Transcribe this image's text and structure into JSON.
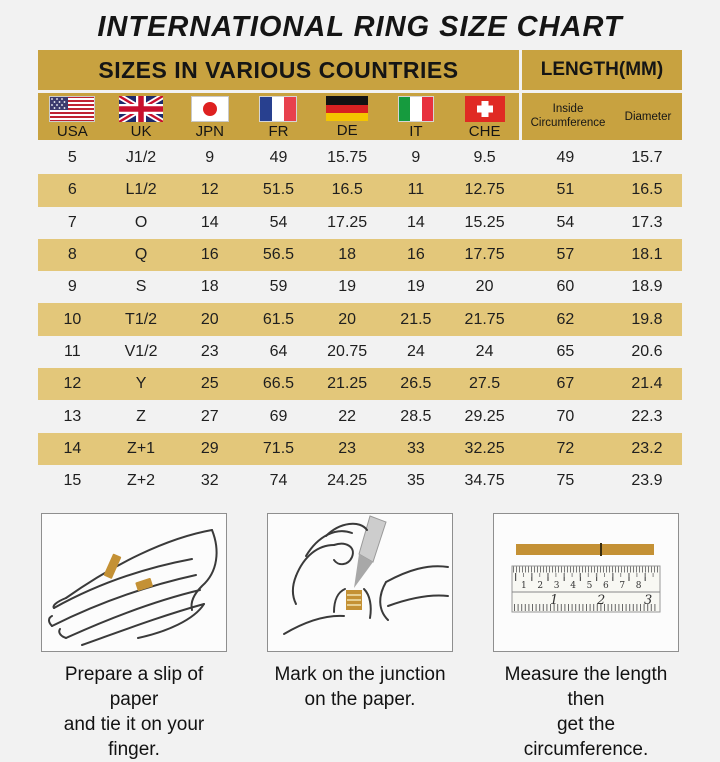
{
  "title": "INTERNATIONAL RING SIZE CHART",
  "table": {
    "group_headers": {
      "left": "SIZES IN VARIOUS COUNTRIES",
      "right": "LENGTH(MM)"
    },
    "columns": [
      {
        "code": "USA",
        "flag": "usa-flag"
      },
      {
        "code": "UK",
        "flag": "uk-flag"
      },
      {
        "code": "JPN",
        "flag": "japan-flag"
      },
      {
        "code": "FR",
        "flag": "france-flag"
      },
      {
        "code": "DE",
        "flag": "germany-flag"
      },
      {
        "code": "IT",
        "flag": "italy-flag"
      },
      {
        "code": "CHE",
        "flag": "switzerland-flag"
      }
    ],
    "length_columns": {
      "inside_circumference": "Inside Circumference",
      "diameter": "Diameter"
    },
    "rows": [
      [
        "5",
        "J1/2",
        "9",
        "49",
        "15.75",
        "9",
        "9.5",
        "49",
        "15.7"
      ],
      [
        "6",
        "L1/2",
        "12",
        "51.5",
        "16.5",
        "11",
        "12.75",
        "51",
        "16.5"
      ],
      [
        "7",
        "O",
        "14",
        "54",
        "17.25",
        "14",
        "15.25",
        "54",
        "17.3"
      ],
      [
        "8",
        "Q",
        "16",
        "56.5",
        "18",
        "16",
        "17.75",
        "57",
        "18.1"
      ],
      [
        "9",
        "S",
        "18",
        "59",
        "19",
        "19",
        "20",
        "60",
        "18.9"
      ],
      [
        "10",
        "T1/2",
        "20",
        "61.5",
        "20",
        "21.5",
        "21.75",
        "62",
        "19.8"
      ],
      [
        "11",
        "V1/2",
        "23",
        "64",
        "20.75",
        "24",
        "24",
        "65",
        "20.6"
      ],
      [
        "12",
        "Y",
        "25",
        "66.5",
        "21.25",
        "26.5",
        "27.5",
        "67",
        "21.4"
      ],
      [
        "13",
        "Z",
        "27",
        "69",
        "22",
        "28.5",
        "29.25",
        "70",
        "22.3"
      ],
      [
        "14",
        "Z+1",
        "29",
        "71.5",
        "23",
        "33",
        "32.25",
        "72",
        "23.2"
      ],
      [
        "15",
        "Z+2",
        "32",
        "74",
        "24.25",
        "35",
        "34.75",
        "75",
        "23.9"
      ]
    ]
  },
  "instructions": [
    {
      "illustration": "hand-with-paper-strip",
      "caption_line1": "Prepare a slip of paper",
      "caption_line2": "and tie it on your finger."
    },
    {
      "illustration": "hand-marking-pen",
      "caption_line1": "Mark on the junction",
      "caption_line2": "on the paper."
    },
    {
      "illustration": "ruler-with-strip",
      "caption_line1": "Measure the length then",
      "caption_line2": "get the circumference."
    }
  ],
  "ruler": {
    "cm_numbers": [
      "1",
      "2",
      "3",
      "4",
      "5",
      "6",
      "7",
      "8"
    ],
    "inch_numbers": [
      "1",
      "2",
      "3"
    ]
  },
  "colors": {
    "header_gold": "#C8A240",
    "stripe_gold": "#E3C77A",
    "paper_gold": "#C49135",
    "background": "#F2F2F2",
    "text": "#1C1C1C"
  }
}
